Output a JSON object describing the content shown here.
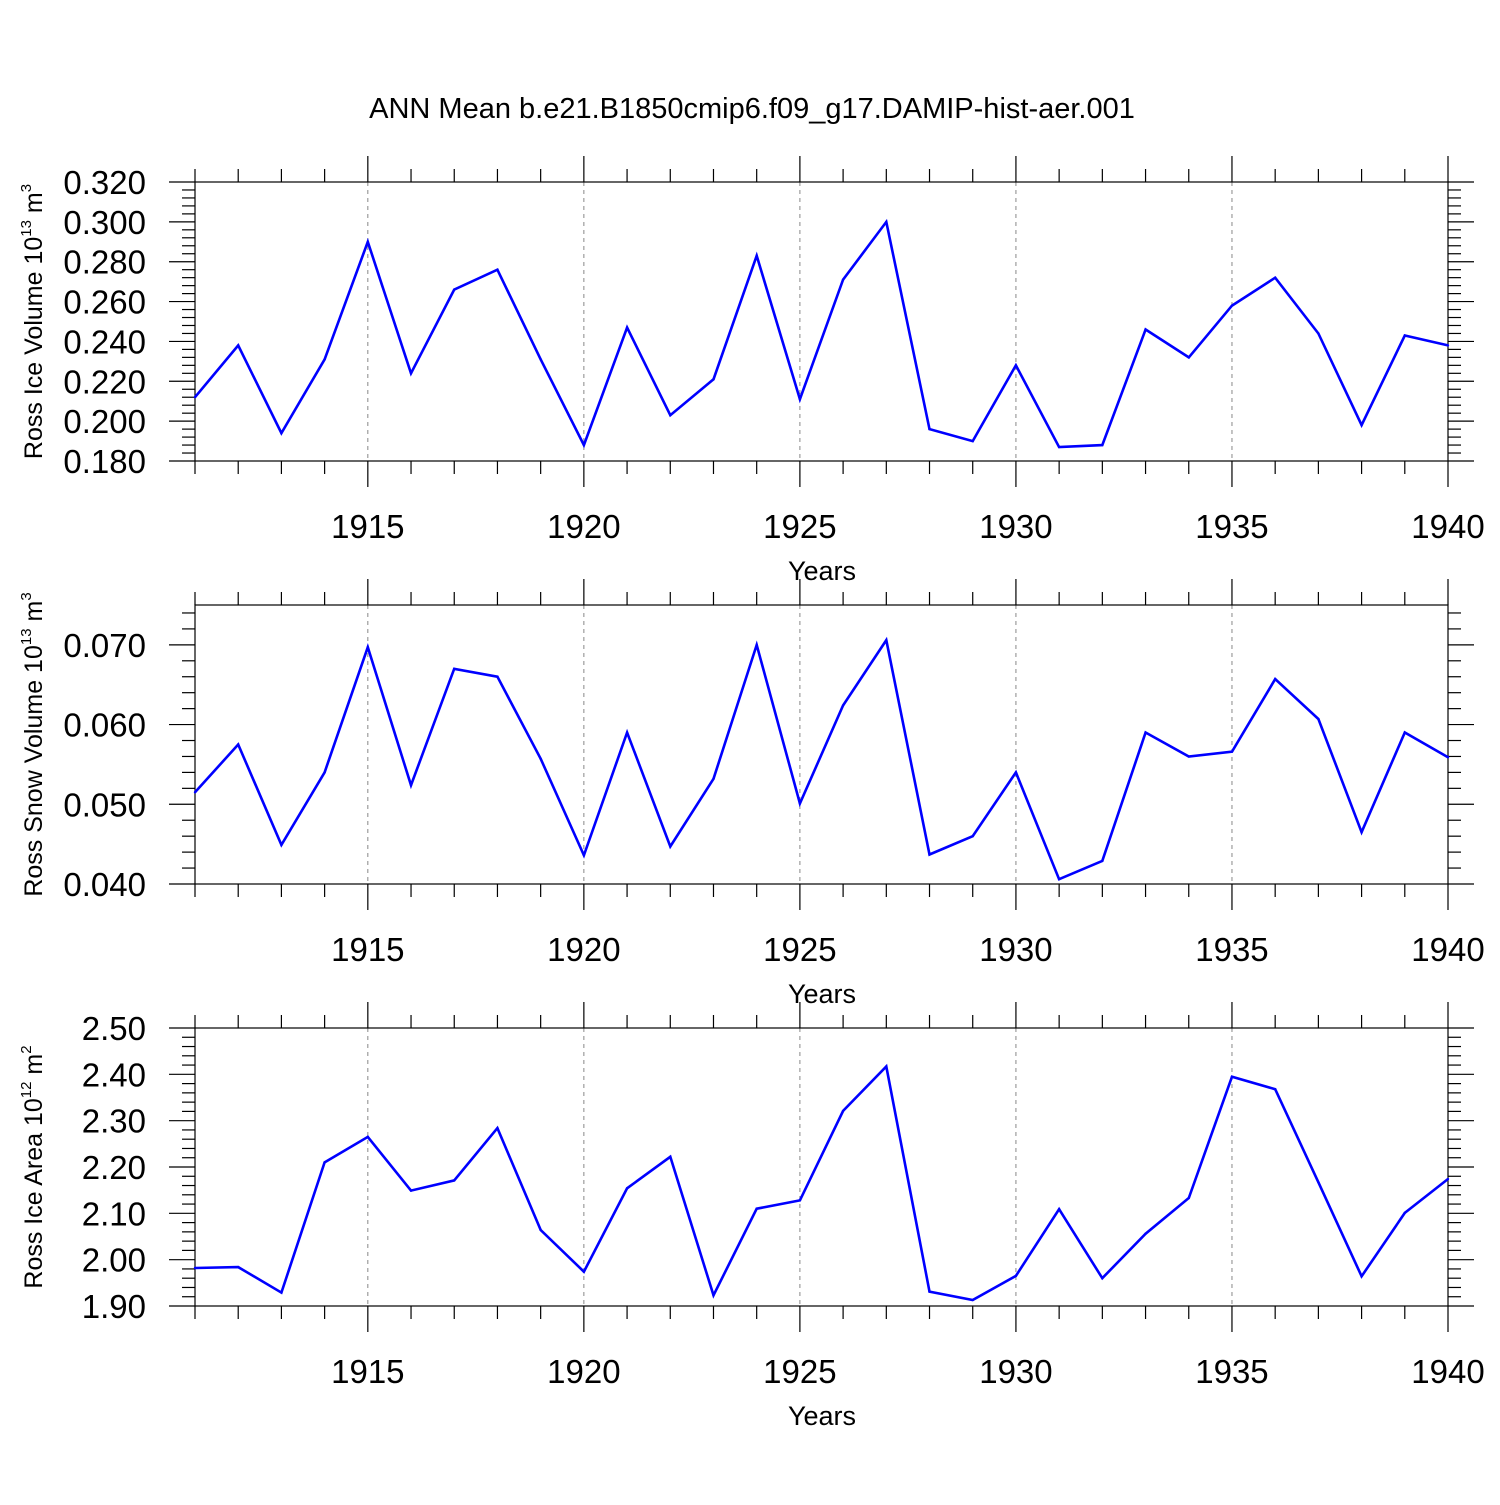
{
  "title": "ANN Mean b.e21.B1850cmip6.f09_g17.DAMIP-hist-aer.001",
  "colors": {
    "line": "#0000ff",
    "axis": "#000000",
    "grid": "#888888"
  },
  "chart_data": [
    {
      "type": "line",
      "title": "",
      "xlabel": "Years",
      "ylabel": {
        "text": "Ross Ice Volume 10",
        "sup": "13",
        "unit": " m",
        "unit_sup": "3"
      },
      "xlim": [
        1911,
        1940
      ],
      "ylim": [
        0.18,
        0.32
      ],
      "x_ticks": [
        "1915",
        "1920",
        "1925",
        "1930",
        "1935",
        "1940"
      ],
      "y_ticks": [
        "0.180",
        "0.200",
        "0.220",
        "0.240",
        "0.260",
        "0.280",
        "0.300",
        "0.320"
      ],
      "grid": "vertical dashed at major x ticks",
      "x": [
        1911,
        1912,
        1913,
        1914,
        1915,
        1916,
        1917,
        1918,
        1919,
        1920,
        1921,
        1922,
        1923,
        1924,
        1925,
        1926,
        1927,
        1928,
        1929,
        1930,
        1931,
        1932,
        1933,
        1934,
        1935,
        1936,
        1937,
        1938,
        1939,
        1940
      ],
      "values": [
        0.212,
        0.238,
        0.194,
        0.231,
        0.29,
        0.224,
        0.266,
        0.276,
        0.231,
        0.188,
        0.247,
        0.203,
        0.221,
        0.283,
        0.211,
        0.271,
        0.3,
        0.196,
        0.19,
        0.228,
        0.187,
        0.188,
        0.246,
        0.232,
        0.258,
        0.272,
        0.244,
        0.198,
        0.243,
        0.238
      ]
    },
    {
      "type": "line",
      "title": "",
      "xlabel": "Years",
      "ylabel": {
        "text": "Ross Snow Volume 10",
        "sup": "13",
        "unit": " m",
        "unit_sup": "3"
      },
      "xlim": [
        1911,
        1940
      ],
      "ylim": [
        0.04,
        0.075
      ],
      "x_ticks": [
        "1915",
        "1920",
        "1925",
        "1930",
        "1935",
        "1940"
      ],
      "y_ticks": [
        "0.040",
        "0.050",
        "0.060",
        "0.070"
      ],
      "grid": "vertical dashed at major x ticks",
      "x": [
        1911,
        1912,
        1913,
        1914,
        1915,
        1916,
        1917,
        1918,
        1919,
        1920,
        1921,
        1922,
        1923,
        1924,
        1925,
        1926,
        1927,
        1928,
        1929,
        1930,
        1931,
        1932,
        1933,
        1934,
        1935,
        1936,
        1937,
        1938,
        1939,
        1940
      ],
      "values": [
        0.0515,
        0.0575,
        0.0449,
        0.054,
        0.0697,
        0.0524,
        0.067,
        0.066,
        0.0557,
        0.0436,
        0.059,
        0.0447,
        0.0532,
        0.07,
        0.0501,
        0.0624,
        0.0706,
        0.0437,
        0.046,
        0.054,
        0.0406,
        0.0429,
        0.059,
        0.056,
        0.0566,
        0.0657,
        0.0607,
        0.0465,
        0.059,
        0.0559
      ]
    },
    {
      "type": "line",
      "title": "",
      "xlabel": "Years",
      "ylabel": {
        "text": "Ross Ice Area 10",
        "sup": "12",
        "unit": " m",
        "unit_sup": "2"
      },
      "xlim": [
        1911,
        1940
      ],
      "ylim": [
        1.9,
        2.5
      ],
      "x_ticks": [
        "1915",
        "1920",
        "1925",
        "1930",
        "1935",
        "1940"
      ],
      "y_ticks": [
        "1.90",
        "2.00",
        "2.10",
        "2.20",
        "2.30",
        "2.40",
        "2.50"
      ],
      "grid": "vertical dashed at major x ticks",
      "x": [
        1911,
        1912,
        1913,
        1914,
        1915,
        1916,
        1917,
        1918,
        1919,
        1920,
        1921,
        1922,
        1923,
        1924,
        1925,
        1926,
        1927,
        1928,
        1929,
        1930,
        1931,
        1932,
        1933,
        1934,
        1935,
        1936,
        1937,
        1938,
        1939,
        1940
      ],
      "values": [
        1.982,
        1.984,
        1.929,
        2.21,
        2.265,
        2.149,
        2.171,
        2.284,
        2.064,
        1.974,
        2.154,
        2.222,
        1.923,
        2.11,
        2.128,
        2.321,
        2.417,
        1.931,
        1.913,
        1.965,
        2.109,
        1.96,
        2.056,
        2.133,
        2.395,
        2.368,
        2.167,
        1.964,
        2.101,
        2.174
      ]
    }
  ]
}
